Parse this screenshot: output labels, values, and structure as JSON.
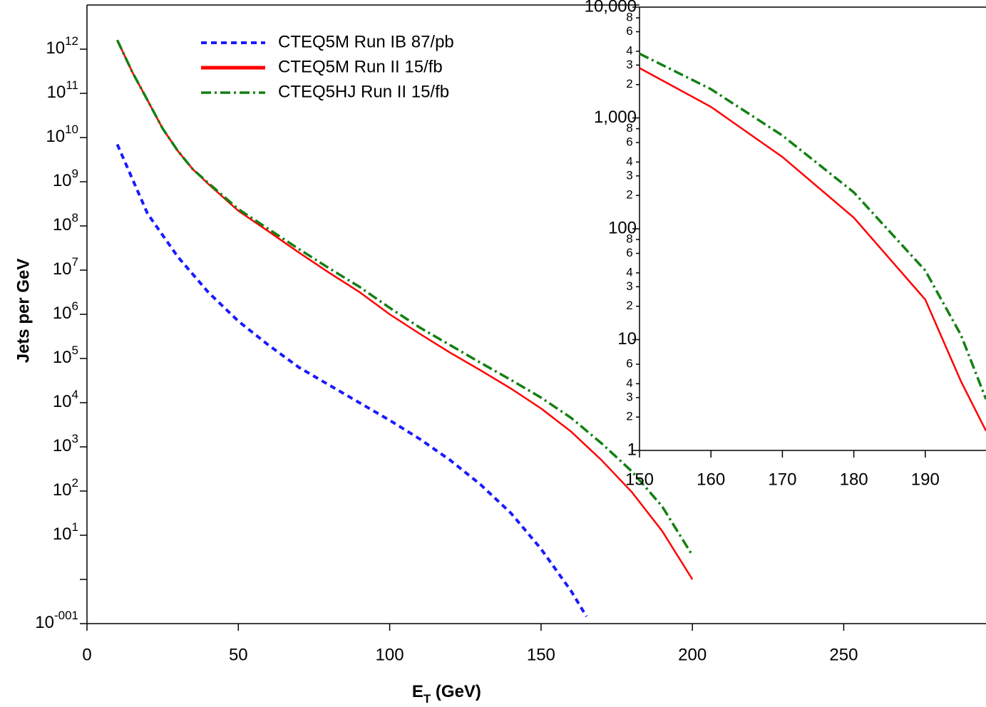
{
  "chart_data": [
    {
      "type": "line",
      "x_label": "E_T (GeV)",
      "y_label": "Jets per GeV",
      "log_y": true,
      "legend": "upper center",
      "xlim": [
        0,
        297
      ],
      "xticks": [
        0,
        50,
        100,
        150,
        200,
        250
      ],
      "ylim": [
        0.1,
        10000000000000.0
      ],
      "yticks": [
        {
          "value": 0.1,
          "label": "10^-001"
        },
        {
          "value": 1,
          "label": null
        },
        {
          "value": 10,
          "label": "10^1"
        },
        {
          "value": 100,
          "label": "10^2"
        },
        {
          "value": 1000,
          "label": "10^3"
        },
        {
          "value": 10000,
          "label": "10^4"
        },
        {
          "value": 100000,
          "label": "10^5"
        },
        {
          "value": 1000000,
          "label": "10^6"
        },
        {
          "value": 10000000,
          "label": "10^7"
        },
        {
          "value": 100000000,
          "label": "10^8"
        },
        {
          "value": 1000000000,
          "label": "10^9"
        },
        {
          "value": 10000000000,
          "label": "10^10"
        },
        {
          "value": 100000000000,
          "label": "10^11"
        },
        {
          "value": 1000000000000,
          "label": "10^12"
        }
      ],
      "series": [
        {
          "name": "CTEQ5M Run IB 87/pb",
          "color": "#1a1aff",
          "dash": "dashed",
          "width": 4,
          "x": [
            10,
            20,
            30,
            40,
            50,
            60,
            70,
            80,
            90,
            100,
            110,
            120,
            130,
            140,
            150,
            160,
            165
          ],
          "values": [
            7000000000.0,
            190000000.0,
            20000000.0,
            3200000.0,
            700000.0,
            200000.0,
            63000.0,
            25000.0,
            10000.0,
            4000.0,
            1500.0,
            500.0,
            140.0,
            32,
            4.9,
            0.54,
            0.145
          ]
        },
        {
          "name": "CTEQ5M Run II 15/fb",
          "color": "#ff0000",
          "dash": "solid",
          "width": 2.5,
          "x": [
            10,
            15,
            20,
            25,
            30,
            35,
            40,
            50,
            60,
            70,
            80,
            90,
            100,
            110,
            120,
            130,
            140,
            150,
            160,
            170,
            180,
            190,
            200
          ],
          "values": [
            1600000000000.0,
            300000000000.0,
            70000000000.0,
            16000000000.0,
            5000000000.0,
            1900000000.0,
            900000000.0,
            220000000.0,
            75000000.0,
            25000000.0,
            8700000.0,
            3200000.0,
            1000000.0,
            360000.0,
            135000.0,
            54000.0,
            21000.0,
            7400.0,
            2200.0,
            500,
            95,
            12.5,
            1
          ]
        },
        {
          "name": "CTEQ5HJ Run II 15/fb",
          "color": "#138013",
          "dash": "dashdot",
          "width": 3.5,
          "x": [
            10,
            15,
            20,
            25,
            30,
            35,
            40,
            50,
            60,
            70,
            80,
            90,
            100,
            110,
            120,
            130,
            140,
            150,
            160,
            170,
            180,
            190,
            200
          ],
          "values": [
            1600000000000.0,
            300000000000.0,
            70000000000.0,
            16000000000.0,
            5000000000.0,
            1900000000.0,
            950000000.0,
            240000000.0,
            85000000.0,
            30000000.0,
            11000000.0,
            4200000.0,
            1400000.0,
            500000.0,
            200000.0,
            80000.0,
            33000.0,
            13000.0,
            4500.0,
            1200.0,
            280,
            45,
            3.5
          ]
        }
      ]
    },
    {
      "type": "line",
      "log_y": true,
      "xlim": [
        150,
        198.5
      ],
      "xticks": [
        150,
        160,
        170,
        180,
        190
      ],
      "ylim": [
        1,
        10000
      ],
      "yticks": [
        1,
        2,
        3,
        4,
        6,
        10,
        {
          "value": 20,
          "label": "2"
        },
        {
          "value": 30,
          "label": "3"
        },
        {
          "value": 40,
          "label": "4"
        },
        {
          "value": 60,
          "label": "6"
        },
        {
          "value": 80,
          "label": "8"
        },
        100,
        {
          "value": 200,
          "label": "2"
        },
        {
          "value": 300,
          "label": "3"
        },
        {
          "value": 400,
          "label": "4"
        },
        {
          "value": 600,
          "label": "6"
        },
        {
          "value": 800,
          "label": "8"
        },
        {
          "value": 1000,
          "label": "1,000"
        },
        {
          "value": 2000,
          "label": "2"
        },
        {
          "value": 3000,
          "label": "3"
        },
        {
          "value": 4000,
          "label": "4"
        },
        {
          "value": 6000,
          "label": "6"
        },
        {
          "value": 8000,
          "label": "8"
        },
        {
          "value": 10000,
          "label": "10,000"
        }
      ],
      "series": [
        {
          "color": "#ff0000",
          "dash": "solid",
          "width": 2.5,
          "x": [
            150,
            160,
            170,
            180,
            190,
            195,
            198.5
          ],
          "values": [
            2820,
            1260,
            445,
            126,
            23,
            4.2,
            1.5
          ]
        },
        {
          "color": "#138013",
          "dash": "dashdot",
          "width": 3.5,
          "x": [
            150,
            160,
            170,
            180,
            190,
            195,
            198.5
          ],
          "values": [
            3800,
            1820,
            695,
            213,
            42,
            11,
            2.9
          ]
        }
      ]
    }
  ]
}
